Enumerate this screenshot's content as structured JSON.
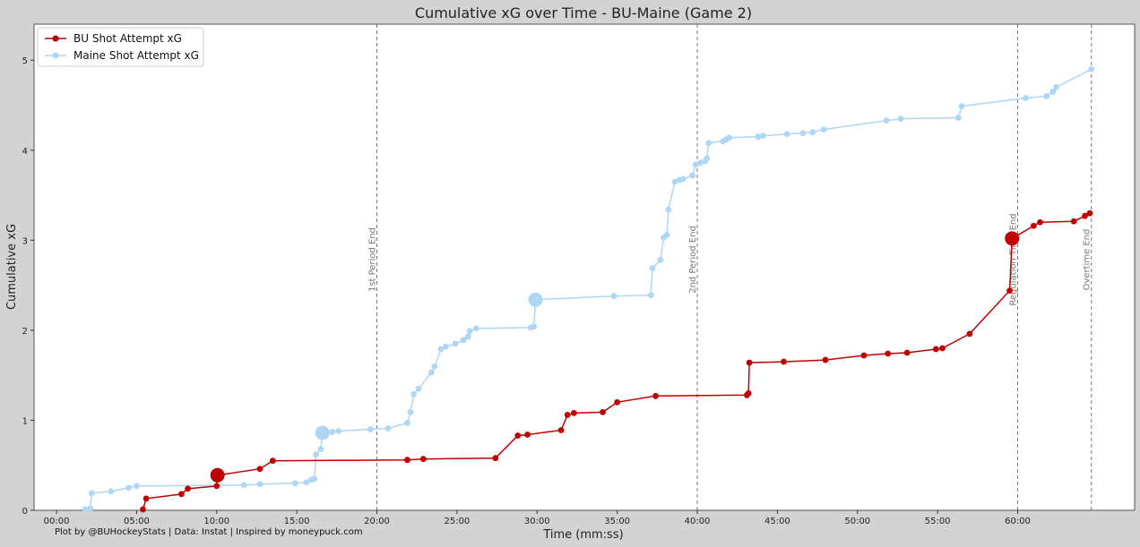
{
  "chart_data": {
    "type": "line",
    "title": "Cumulative xG over Time - BU-Maine (Game 2)",
    "xlabel": "Time (mm:ss)",
    "ylabel": "Cumulative xG",
    "xlim": [
      -1.4,
      67.3
    ],
    "ylim": [
      0,
      5.4
    ],
    "x_ticks": [
      0,
      5,
      10,
      15,
      20,
      25,
      30,
      35,
      40,
      45,
      50,
      55,
      60
    ],
    "x_tick_labels": [
      "00:00",
      "05:00",
      "10:00",
      "15:00",
      "20:00",
      "25:00",
      "30:00",
      "35:00",
      "40:00",
      "45:00",
      "50:00",
      "55:00",
      "60:00"
    ],
    "y_ticks": [
      0,
      1,
      2,
      3,
      4,
      5
    ],
    "y_tick_labels": [
      "0",
      "1",
      "2",
      "3",
      "4",
      "5"
    ],
    "grid": false,
    "legend_position": "top-left",
    "period_lines": [
      {
        "x": 20,
        "label": "1st Period End"
      },
      {
        "x": 40,
        "label": "2nd Period End"
      },
      {
        "x": 60,
        "label": "Regulation Time End"
      },
      {
        "x": 64.6,
        "label": "Overtime End"
      }
    ],
    "series": [
      {
        "name": "BU Shot Attempt xG",
        "color": "#c00000",
        "x": [
          5.4,
          5.6,
          7.8,
          8.2,
          10.0,
          10.05,
          12.7,
          13.5,
          21.9,
          22.9,
          27.4,
          28.8,
          29.4,
          31.5,
          31.9,
          32.3,
          34.1,
          35.0,
          37.4,
          43.1,
          43.2,
          43.25,
          45.4,
          48.0,
          50.4,
          51.9,
          53.1,
          54.9,
          55.3,
          57.0,
          59.5,
          59.65,
          61.0,
          61.4,
          63.5,
          64.2,
          64.5
        ],
        "y": [
          0.01,
          0.13,
          0.18,
          0.24,
          0.27,
          0.39,
          0.46,
          0.55,
          0.56,
          0.57,
          0.58,
          0.83,
          0.84,
          0.89,
          1.06,
          1.08,
          1.09,
          1.2,
          1.27,
          1.28,
          1.3,
          1.64,
          1.65,
          1.67,
          1.72,
          1.74,
          1.75,
          1.79,
          1.8,
          1.96,
          2.44,
          3.02,
          3.16,
          3.2,
          3.21,
          3.27,
          3.3
        ],
        "big_points": [
          5,
          31
        ]
      },
      {
        "name": "Maine Shot Attempt xG",
        "color": "#aed6f5",
        "x": [
          1.8,
          2.1,
          2.2,
          3.4,
          4.5,
          5.0,
          11.7,
          12.7,
          14.9,
          15.6,
          15.9,
          16.1,
          16.2,
          16.5,
          16.6,
          17.2,
          17.6,
          19.6,
          20.7,
          21.9,
          22.1,
          22.3,
          22.6,
          23.4,
          23.6,
          24.0,
          24.3,
          24.9,
          25.4,
          25.7,
          25.8,
          26.2,
          29.6,
          29.8,
          29.9,
          34.8,
          37.1,
          37.2,
          37.7,
          37.9,
          38.1,
          38.2,
          38.6,
          38.9,
          39.1,
          39.7,
          39.9,
          40.2,
          40.5,
          40.6,
          40.7,
          41.6,
          41.8,
          42.0,
          43.8,
          44.1,
          45.6,
          46.6,
          47.2,
          47.9,
          51.8,
          52.7,
          56.3,
          56.5,
          60.5,
          61.8,
          62.2,
          62.4,
          64.6
        ],
        "y": [
          0.01,
          0.02,
          0.19,
          0.21,
          0.25,
          0.27,
          0.28,
          0.29,
          0.3,
          0.31,
          0.34,
          0.35,
          0.62,
          0.68,
          0.86,
          0.87,
          0.88,
          0.9,
          0.91,
          0.97,
          1.09,
          1.29,
          1.35,
          1.53,
          1.6,
          1.79,
          1.82,
          1.85,
          1.89,
          1.93,
          1.99,
          2.02,
          2.03,
          2.04,
          2.34,
          2.38,
          2.39,
          2.69,
          2.78,
          3.03,
          3.06,
          3.34,
          3.65,
          3.67,
          3.68,
          3.72,
          3.84,
          3.86,
          3.88,
          3.91,
          4.08,
          4.1,
          4.12,
          4.14,
          4.15,
          4.16,
          4.18,
          4.19,
          4.2,
          4.23,
          4.33,
          4.35,
          4.36,
          4.49,
          4.58,
          4.6,
          4.65,
          4.7,
          4.9
        ],
        "big_points": [
          14,
          34
        ]
      }
    ]
  },
  "credit": "Plot by @BUHockeyStats | Data: Instat | Inspired by moneypuck.com"
}
